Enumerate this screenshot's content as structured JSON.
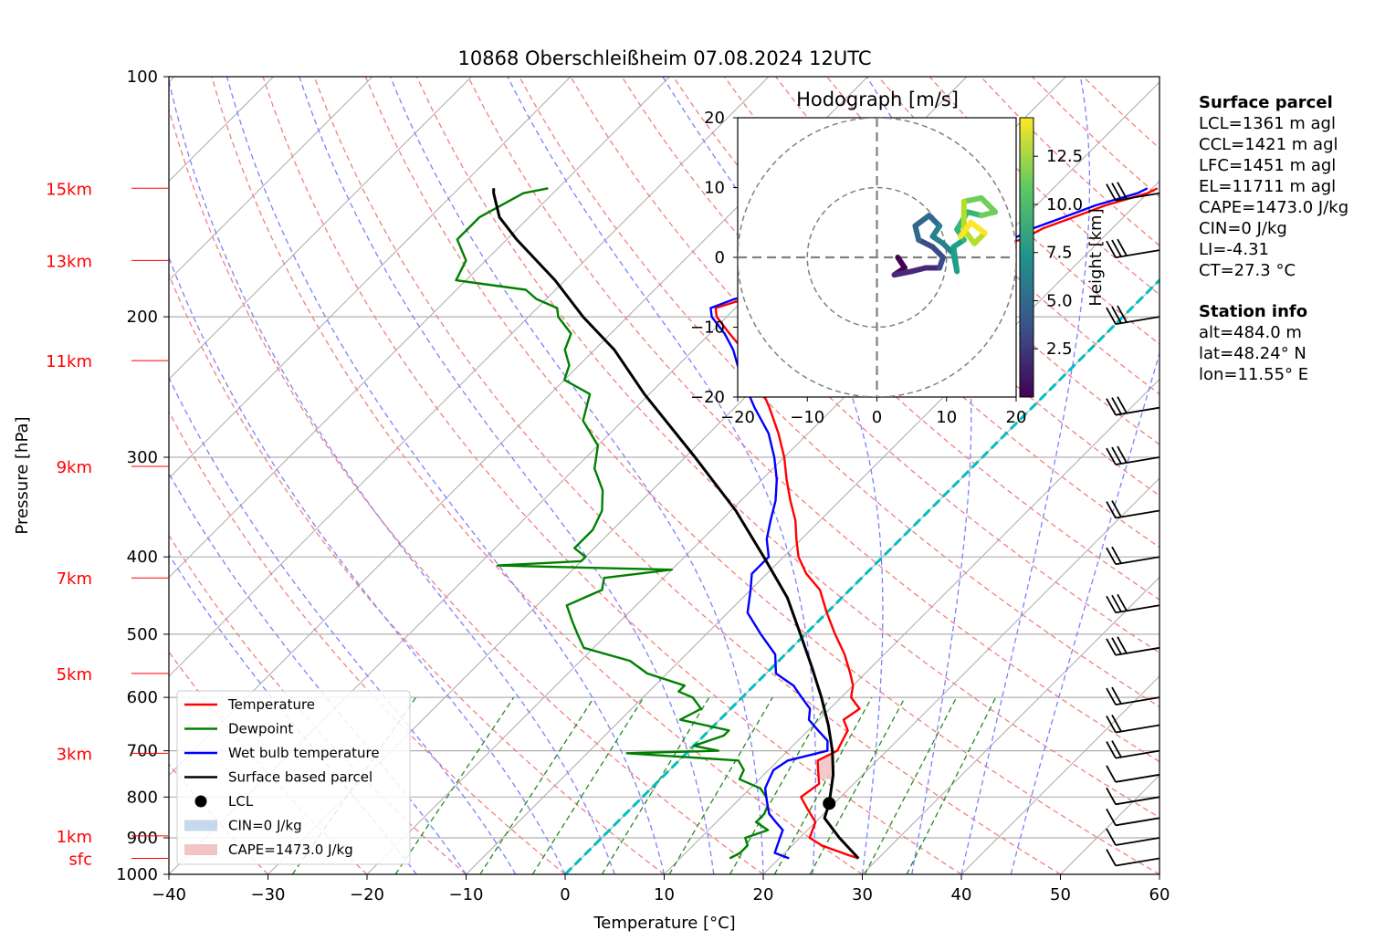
{
  "title": "10868 Oberschleißheim 07.08.2024 12UTC",
  "xlabel": "Temperature [°C]",
  "ylabel": "Pressure [hPa]",
  "colors": {
    "temperature": "#ff0000",
    "dewpoint": "#008000",
    "wetbulb": "#0000ff",
    "parcel": "#000000",
    "cape_fill": "#f2c4c4",
    "cin_fill": "#c6d9ec",
    "isotherm_zero": "#00bfbf",
    "dry_adiabat": "#f08080",
    "moist_adiabat": "#7f7fff",
    "mixing_ratio": "#228b22",
    "grid": "#b0b0b0"
  },
  "height_labels": [
    {
      "label": "15km",
      "p": 138
    },
    {
      "label": "13km",
      "p": 170
    },
    {
      "label": "11km",
      "p": 227
    },
    {
      "label": "9km",
      "p": 308
    },
    {
      "label": "7km",
      "p": 425
    },
    {
      "label": "5km",
      "p": 560
    },
    {
      "label": "3km",
      "p": 705
    },
    {
      "label": "1km",
      "p": 895
    },
    {
      "label": "sfc",
      "p": 955
    }
  ],
  "legend": [
    {
      "label": "Temperature",
      "kind": "line",
      "color": "#ff0000"
    },
    {
      "label": "Dewpoint",
      "kind": "line",
      "color": "#008000"
    },
    {
      "label": "Wet bulb temperature",
      "kind": "line",
      "color": "#0000ff"
    },
    {
      "label": "Surface based parcel",
      "kind": "line",
      "color": "#000000"
    },
    {
      "label": "LCL",
      "kind": "dot",
      "color": "#000000"
    },
    {
      "label": "CIN=0 J/kg",
      "kind": "patch",
      "color": "#c6d9ec"
    },
    {
      "label": "CAPE=1473.0 J/kg",
      "kind": "patch",
      "color": "#f2c4c4"
    }
  ],
  "info": {
    "surface_title": "Surface parcel",
    "surface": [
      "LCL=1361 m agl",
      "CCL=1421 m agl",
      "LFC=1451 m agl",
      "EL=11711 m agl",
      "CAPE=1473.0 J/kg",
      "CIN=0 J/kg",
      "LI=-4.31",
      "CT=27.3 °C"
    ],
    "station_title": "Station info",
    "station": [
      "alt=484.0 m",
      "lat=48.24° N",
      "lon=11.55° E"
    ]
  },
  "hodograph": {
    "title": "Hodograph [m/s]",
    "colorbar_label": "Height [km]",
    "colorbar_ticks": [
      2.5,
      5.0,
      7.5,
      10.0,
      12.5
    ],
    "xlim": [
      -20,
      20
    ],
    "ylim": [
      -20,
      20
    ],
    "ticks": [
      -20,
      -10,
      0,
      10,
      20
    ],
    "rings": [
      10,
      20
    ],
    "points": [
      {
        "u": 3,
        "v": 0,
        "h": 0.5
      },
      {
        "u": 4,
        "v": -1.5,
        "h": 1
      },
      {
        "u": 2.5,
        "v": -2.5,
        "h": 1.5
      },
      {
        "u": 5,
        "v": -2,
        "h": 2
      },
      {
        "u": 7,
        "v": -1.5,
        "h": 2.5
      },
      {
        "u": 9,
        "v": -1.5,
        "h": 3
      },
      {
        "u": 9.5,
        "v": 0,
        "h": 3.5
      },
      {
        "u": 8,
        "v": 1.5,
        "h": 4
      },
      {
        "u": 6,
        "v": 2.5,
        "h": 4.5
      },
      {
        "u": 5.5,
        "v": 4.5,
        "h": 5
      },
      {
        "u": 7.5,
        "v": 6,
        "h": 5.5
      },
      {
        "u": 9,
        "v": 4.5,
        "h": 6
      },
      {
        "u": 8,
        "v": 3,
        "h": 6.5
      },
      {
        "u": 9.5,
        "v": 2,
        "h": 7
      },
      {
        "u": 11,
        "v": 0.5,
        "h": 7.5
      },
      {
        "u": 11.5,
        "v": -2,
        "h": 8
      },
      {
        "u": 11,
        "v": 1.5,
        "h": 8.5
      },
      {
        "u": 12.5,
        "v": 2.5,
        "h": 9
      },
      {
        "u": 11.5,
        "v": 4,
        "h": 9.5
      },
      {
        "u": 13,
        "v": 6.5,
        "h": 10
      },
      {
        "u": 15,
        "v": 6,
        "h": 10.5
      },
      {
        "u": 17,
        "v": 6.5,
        "h": 11
      },
      {
        "u": 15,
        "v": 8.5,
        "h": 11.5
      },
      {
        "u": 12.5,
        "v": 8,
        "h": 12
      },
      {
        "u": 12.5,
        "v": 4,
        "h": 12.5
      },
      {
        "u": 14,
        "v": 2,
        "h": 13
      },
      {
        "u": 15.5,
        "v": 3.5,
        "h": 13.5
      },
      {
        "u": 13.5,
        "v": 5,
        "h": 14
      },
      {
        "u": 12,
        "v": 3,
        "h": 14.5
      }
    ]
  },
  "chart_data": {
    "type": "line",
    "title": "10868 Oberschleißheim 07.08.2024 12UTC",
    "xlabel": "Temperature [°C]",
    "ylabel": "Pressure [hPa]",
    "xlim": [
      -40,
      60
    ],
    "ylim": [
      1000,
      100
    ],
    "x_ticks": [
      -40,
      -30,
      -20,
      -10,
      0,
      10,
      20,
      30,
      40,
      50,
      60
    ],
    "y_ticks": [
      100,
      200,
      300,
      400,
      500,
      600,
      700,
      800,
      900,
      1000
    ],
    "y_scale": "log",
    "skew": "isotherms slanted 45°",
    "grid": true,
    "legend_position": "lower-left",
    "series": [
      {
        "name": "Temperature",
        "points": [
          [
            955,
            28
          ],
          [
            945,
            26.5
          ],
          [
            920,
            23
          ],
          [
            900,
            21
          ],
          [
            860,
            20
          ],
          [
            830,
            18
          ],
          [
            800,
            16
          ],
          [
            770,
            16.5
          ],
          [
            740,
            15
          ],
          [
            720,
            14
          ],
          [
            700,
            15
          ],
          [
            680,
            14.5
          ],
          [
            660,
            14
          ],
          [
            640,
            12.5
          ],
          [
            620,
            13
          ],
          [
            600,
            11
          ],
          [
            580,
            10
          ],
          [
            560,
            8.5
          ],
          [
            530,
            6
          ],
          [
            500,
            3
          ],
          [
            470,
            0
          ],
          [
            440,
            -3
          ],
          [
            420,
            -6
          ],
          [
            400,
            -8.5
          ],
          [
            380,
            -10.5
          ],
          [
            360,
            -12.5
          ],
          [
            340,
            -15
          ],
          [
            320,
            -17.5
          ],
          [
            300,
            -20
          ],
          [
            280,
            -23
          ],
          [
            260,
            -26.5
          ],
          [
            240,
            -30.5
          ],
          [
            230,
            -33
          ],
          [
            220,
            -35
          ],
          [
            210,
            -38
          ],
          [
            200,
            -41
          ],
          [
            195,
            -42
          ],
          [
            190,
            -40
          ],
          [
            185,
            -36
          ],
          [
            180,
            -28
          ],
          [
            175,
            -24
          ],
          [
            170,
            -22
          ],
          [
            165,
            -21
          ],
          [
            160,
            -18
          ],
          [
            155,
            -17
          ],
          [
            150,
            -15
          ],
          [
            145,
            -13
          ],
          [
            140,
            -10
          ],
          [
            138,
            -9.5
          ]
        ]
      },
      {
        "name": "Dewpoint",
        "points": [
          [
            955,
            15
          ],
          [
            940,
            15.5
          ],
          [
            920,
            15.5
          ],
          [
            900,
            14.5
          ],
          [
            880,
            16
          ],
          [
            860,
            14
          ],
          [
            840,
            14
          ],
          [
            820,
            13.5
          ],
          [
            800,
            12.5
          ],
          [
            780,
            11
          ],
          [
            760,
            8
          ],
          [
            740,
            7.5
          ],
          [
            720,
            6
          ],
          [
            705,
            -6
          ],
          [
            700,
            3
          ],
          [
            690,
            0
          ],
          [
            670,
            2
          ],
          [
            660,
            2
          ],
          [
            640,
            -4
          ],
          [
            620,
            -3
          ],
          [
            600,
            -5
          ],
          [
            590,
            -7
          ],
          [
            580,
            -7
          ],
          [
            560,
            -12
          ],
          [
            540,
            -15
          ],
          [
            520,
            -21
          ],
          [
            500,
            -23
          ],
          [
            480,
            -25
          ],
          [
            460,
            -27
          ],
          [
            440,
            -25
          ],
          [
            425,
            -26
          ],
          [
            415,
            -20
          ],
          [
            410,
            -38
          ],
          [
            405,
            -30
          ],
          [
            400,
            -30
          ],
          [
            390,
            -32
          ],
          [
            370,
            -32
          ],
          [
            350,
            -33
          ],
          [
            330,
            -35
          ],
          [
            310,
            -38
          ],
          [
            290,
            -40
          ],
          [
            270,
            -44
          ],
          [
            250,
            -46
          ],
          [
            240,
            -50
          ],
          [
            230,
            -51
          ],
          [
            220,
            -53
          ],
          [
            210,
            -54
          ],
          [
            200,
            -57
          ],
          [
            195,
            -58
          ],
          [
            190,
            -61
          ],
          [
            185,
            -63
          ],
          [
            180,
            -71
          ],
          [
            170,
            -72
          ],
          [
            160,
            -75
          ],
          [
            150,
            -75
          ],
          [
            140,
            -73
          ],
          [
            138,
            -71
          ]
        ]
      },
      {
        "name": "Wet bulb temperature",
        "points": [
          [
            955,
            21
          ],
          [
            940,
            19
          ],
          [
            920,
            18.5
          ],
          [
            900,
            18
          ],
          [
            880,
            17.5
          ],
          [
            860,
            16
          ],
          [
            840,
            14.5
          ],
          [
            820,
            13.5
          ],
          [
            800,
            12.5
          ],
          [
            780,
            11.5
          ],
          [
            760,
            11
          ],
          [
            740,
            10.5
          ],
          [
            720,
            11
          ],
          [
            700,
            14
          ],
          [
            680,
            13
          ],
          [
            660,
            11
          ],
          [
            640,
            9
          ],
          [
            620,
            8
          ],
          [
            600,
            6
          ],
          [
            580,
            4
          ],
          [
            560,
            1
          ],
          [
            530,
            -1
          ],
          [
            500,
            -4.5
          ],
          [
            470,
            -8
          ],
          [
            440,
            -10
          ],
          [
            420,
            -11.5
          ],
          [
            400,
            -11.5
          ],
          [
            380,
            -13.5
          ],
          [
            360,
            -15
          ],
          [
            340,
            -16.5
          ],
          [
            320,
            -18.5
          ],
          [
            300,
            -21
          ],
          [
            280,
            -24
          ],
          [
            260,
            -28
          ],
          [
            240,
            -32
          ],
          [
            230,
            -34
          ],
          [
            220,
            -36
          ],
          [
            210,
            -38.5
          ],
          [
            200,
            -41.5
          ],
          [
            195,
            -42.5
          ],
          [
            190,
            -41
          ],
          [
            185,
            -37
          ],
          [
            180,
            -29
          ],
          [
            175,
            -25
          ],
          [
            170,
            -23
          ],
          [
            165,
            -22
          ],
          [
            160,
            -19
          ],
          [
            155,
            -18
          ],
          [
            150,
            -16
          ],
          [
            145,
            -14
          ],
          [
            140,
            -11
          ],
          [
            138,
            -10.5
          ]
        ]
      },
      {
        "name": "Surface based parcel",
        "points": [
          [
            955,
            28
          ],
          [
            900,
            24
          ],
          [
            850,
            20.5
          ],
          [
            815,
            19.5
          ],
          [
            750,
            17
          ],
          [
            700,
            14.5
          ],
          [
            650,
            11.5
          ],
          [
            600,
            8
          ],
          [
            550,
            4
          ],
          [
            500,
            -0.5
          ],
          [
            450,
            -5.5
          ],
          [
            400,
            -12
          ],
          [
            350,
            -19.5
          ],
          [
            300,
            -29
          ],
          [
            250,
            -40.5
          ],
          [
            220,
            -48
          ],
          [
            200,
            -54.5
          ],
          [
            180,
            -61
          ],
          [
            160,
            -69
          ],
          [
            150,
            -73
          ],
          [
            140,
            -76
          ],
          [
            138,
            -76.5
          ]
        ]
      }
    ],
    "lcl": {
      "p": 815,
      "t": 19.5
    }
  }
}
